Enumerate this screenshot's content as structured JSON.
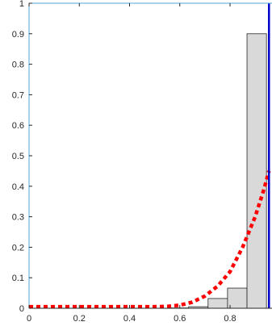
{
  "chart_data": {
    "type": "bar",
    "title": "",
    "xlabel": "",
    "ylabel": "",
    "xlim": [
      0,
      0.967
    ],
    "ylim": [
      0,
      1
    ],
    "grid": false,
    "x_ticks": [
      {
        "value": 0,
        "label": "0"
      },
      {
        "value": 0.2,
        "label": "0.2"
      },
      {
        "value": 0.4,
        "label": "0.4"
      },
      {
        "value": 0.6,
        "label": "0.6"
      },
      {
        "value": 0.8,
        "label": "0.8"
      }
    ],
    "y_ticks": [
      {
        "value": 0,
        "label": "0"
      },
      {
        "value": 0.1,
        "label": "0.1"
      },
      {
        "value": 0.2,
        "label": "0.2"
      },
      {
        "value": 0.3,
        "label": "0.3"
      },
      {
        "value": 0.4,
        "label": "0.4"
      },
      {
        "value": 0.5,
        "label": "0.5"
      },
      {
        "value": 0.6,
        "label": "0.6"
      },
      {
        "value": 0.7,
        "label": "0.7"
      },
      {
        "value": 0.8,
        "label": "0.8"
      },
      {
        "value": 0.9,
        "label": "0.9"
      },
      {
        "value": 1,
        "label": "1"
      }
    ],
    "histogram": {
      "bin_width": 0.0775,
      "bins": [
        {
          "x_start": 0.5575,
          "value": 0.001
        },
        {
          "x_start": 0.635,
          "value": 0.005
        },
        {
          "x_start": 0.7125,
          "value": 0.032
        },
        {
          "x_start": 0.79,
          "value": 0.066
        },
        {
          "x_start": 0.8675,
          "value": 0.9
        }
      ],
      "fill_color": "#d9d9d9",
      "edge_color": "#262626"
    },
    "curve": {
      "style": "dotted",
      "color": "#ff0000",
      "points": [
        [
          0,
          0.005
        ],
        [
          0.1,
          0.005
        ],
        [
          0.2,
          0.005
        ],
        [
          0.3,
          0.005
        ],
        [
          0.4,
          0.005
        ],
        [
          0.5,
          0.005
        ],
        [
          0.55,
          0.006
        ],
        [
          0.6,
          0.01
        ],
        [
          0.65,
          0.02
        ],
        [
          0.7,
          0.04
        ],
        [
          0.75,
          0.072
        ],
        [
          0.8,
          0.12
        ],
        [
          0.85,
          0.2
        ],
        [
          0.9,
          0.3
        ],
        [
          0.935,
          0.39
        ],
        [
          0.955,
          0.45
        ]
      ]
    },
    "vertical_line": {
      "x": 0.955,
      "color": "#0000cc"
    },
    "axis_color": "#4da6d9"
  }
}
